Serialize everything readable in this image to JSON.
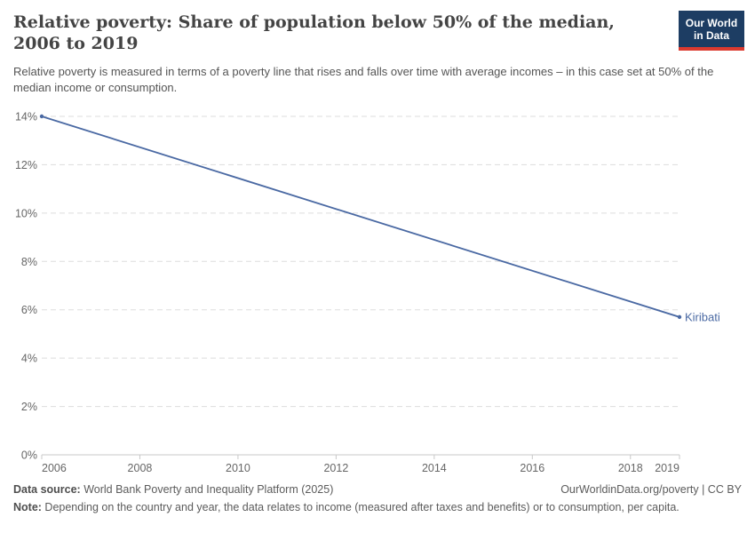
{
  "header": {
    "title": "Relative poverty: Share of population below 50% of the median, 2006 to 2019",
    "subtitle": "Relative poverty is measured in terms of a poverty line that rises and falls over time with average incomes – in this case set at 50% of the median income or consumption.",
    "logo": {
      "line1": "Our World",
      "line2": "in Data"
    }
  },
  "chart_data": {
    "type": "line",
    "title": "Relative poverty: Share of population below 50% of the median, 2006 to 2019",
    "series": [
      {
        "name": "Kiribati",
        "x": [
          2006,
          2019
        ],
        "values": [
          14,
          5.7
        ],
        "color": "#4a69a3"
      }
    ],
    "x": [
      2006,
      2019
    ],
    "x_ticks": [
      2006,
      2008,
      2010,
      2012,
      2014,
      2016,
      2018,
      2019
    ],
    "y_ticks": [
      0,
      2,
      4,
      6,
      8,
      10,
      12,
      14
    ],
    "y_tick_suffix": "%",
    "xlim": [
      2006,
      2019
    ],
    "ylim": [
      0,
      14
    ],
    "xlabel": "",
    "ylabel": "",
    "grid": "horizontal-dashed",
    "legend_position": "end-of-line-label",
    "entity_label": "Kiribati"
  },
  "footer": {
    "datasource_label": "Data source:",
    "datasource_text": " World Bank Poverty and Inequality Platform (2025)",
    "link": "OurWorldinData.org/poverty | CC BY",
    "note_label": "Note:",
    "note_text": " Depending on the country and year, the data relates to income (measured after taxes and benefits) or to consumption, per capita."
  },
  "colors": {
    "line": "#4a69a3",
    "logo_bg": "#1d3d63",
    "logo_red": "#dc3a2f",
    "grid": "#dddddd",
    "axis": "#c8c8c8",
    "tick_text": "#666666",
    "title_text": "#444444",
    "subtitle_text": "#555555"
  }
}
